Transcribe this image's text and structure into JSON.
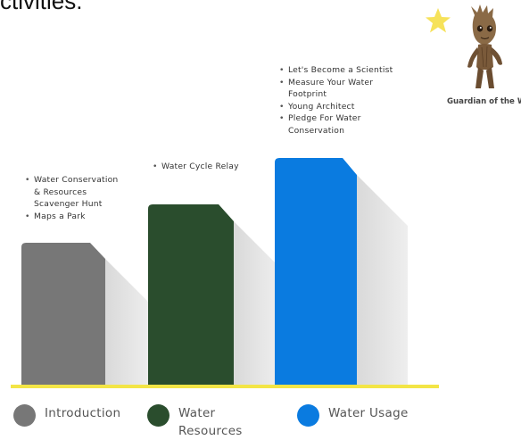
{
  "header": {
    "title_fragment": "ctivities:"
  },
  "stages": [
    {
      "name": "Introduction",
      "color": "#777777",
      "activities": [
        "Water Conservation & Resources Scavenger Hunt",
        "Maps a Park"
      ]
    },
    {
      "name": "Water Resources",
      "color": "#2a4d2d",
      "activities": [
        "Water Cycle Relay"
      ]
    },
    {
      "name": "Water Usage",
      "color": "#0a7be0",
      "activities": [
        "Let's Become a Scientist",
        "Measure Your Water Footprint",
        "Young Architect",
        "Pledge For Water Conservation"
      ]
    }
  ],
  "legend": [
    {
      "label": "Introduction",
      "color": "#777777"
    },
    {
      "label": "Water Resources",
      "color": "#2a4d2d"
    },
    {
      "label": "Water Usage",
      "color": "#0a7be0"
    }
  ],
  "badge": {
    "caption": "Guardian of the Water",
    "star_color": "#f6e25a",
    "icon": "groot-character-image"
  },
  "baseline_color": "#f3e546"
}
